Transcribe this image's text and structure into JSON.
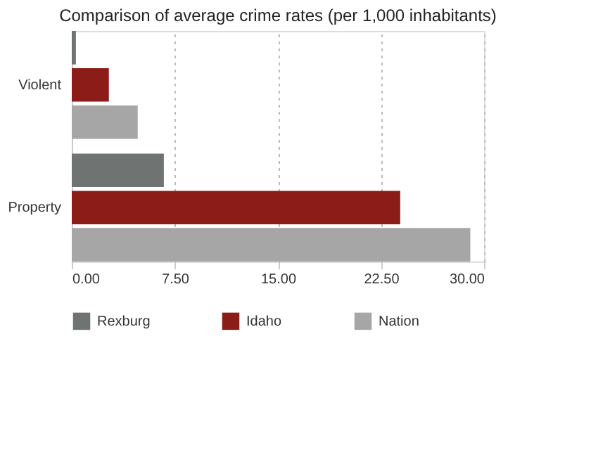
{
  "chart_data": {
    "type": "bar",
    "orientation": "horizontal",
    "title": "Comparison of average crime rates (per 1,000 inhabitants)",
    "categories": [
      "Violent",
      "Property"
    ],
    "series": [
      {
        "name": "Rexburg",
        "color": "#6f7371",
        "values": [
          0.3,
          6.7
        ]
      },
      {
        "name": "Idaho",
        "color": "#8b1c17",
        "values": [
          2.7,
          23.9
        ]
      },
      {
        "name": "Nation",
        "color": "#a6a6a6",
        "values": [
          4.8,
          29.0
        ]
      }
    ],
    "xlim": [
      0,
      30
    ],
    "xticks": [
      {
        "value": 0,
        "label": "0.00"
      },
      {
        "value": 7.5,
        "label": "7.50"
      },
      {
        "value": 15,
        "label": "15.00"
      },
      {
        "value": 22.5,
        "label": "22.50"
      },
      {
        "value": 30,
        "label": "30.00"
      }
    ],
    "grid": "x",
    "legend": "bottom"
  }
}
